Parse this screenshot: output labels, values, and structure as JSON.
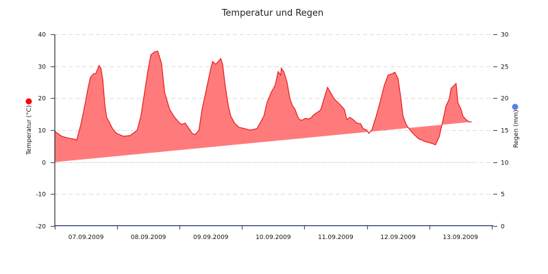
{
  "chart_data": {
    "type": "area",
    "title": "Temperatur und Regen",
    "xlabel": "",
    "ylabel": "Temperatur (°C)",
    "y2label": "Regen (mm)",
    "ylim": [
      -20,
      40
    ],
    "y2lim": [
      0,
      30
    ],
    "yticks": [
      40,
      30,
      20,
      10,
      0,
      -10,
      -20
    ],
    "y2ticks": [
      30,
      25,
      20,
      15,
      10,
      5,
      0
    ],
    "categories": [
      "07.09.2009",
      "08.09.2009",
      "09.09.2009",
      "10.09.2009",
      "11.09.2009",
      "12.09.2009",
      "13.09.2009"
    ],
    "grid": true,
    "legend": [
      {
        "name": "Temperatur (°C)",
        "color": "#ff0000",
        "axis": "left"
      },
      {
        "name": "Regen (mm)",
        "color": "#5b7fe8",
        "axis": "right"
      }
    ],
    "series": [
      {
        "name": "Temperatur",
        "color": "#e8191b",
        "fill": "#ff7b7b",
        "x_days": [
          0.0,
          0.11,
          0.22,
          0.33,
          0.35,
          0.42,
          0.49,
          0.53,
          0.57,
          0.62,
          0.66,
          0.71,
          0.74,
          0.77,
          0.8,
          0.83,
          0.88,
          0.93,
          0.99,
          1.1,
          1.21,
          1.32,
          1.38,
          1.43,
          1.49,
          1.54,
          1.6,
          1.65,
          1.71,
          1.76,
          1.84,
          1.92,
          2.0,
          2.04,
          2.09,
          2.15,
          2.2,
          2.25,
          2.31,
          2.36,
          2.43,
          2.5,
          2.53,
          2.58,
          2.62,
          2.66,
          2.69,
          2.73,
          2.78,
          2.82,
          2.88,
          2.95,
          3.04,
          3.13,
          3.24,
          3.35,
          3.4,
          3.47,
          3.53,
          3.58,
          3.62,
          3.63,
          3.67,
          3.72,
          3.77,
          3.81,
          3.85,
          3.89,
          3.92,
          3.96,
          4.02,
          4.05,
          4.1,
          4.15,
          4.26,
          4.37,
          4.48,
          4.54,
          4.59,
          4.64,
          4.68,
          4.73,
          4.77,
          4.84,
          4.9,
          4.94,
          5.0,
          5.03,
          5.08,
          5.15,
          5.21,
          5.28,
          5.34,
          5.4,
          5.45,
          5.5,
          5.54,
          5.58,
          5.63,
          5.66,
          5.72,
          5.77,
          5.83,
          5.94,
          6.05,
          6.1,
          6.16,
          6.21,
          6.27,
          6.32,
          6.35,
          6.4,
          6.43,
          6.46,
          6.51,
          6.54,
          6.59,
          6.64,
          6.68,
          6.73,
          6.77
        ],
        "values": [
          9.6,
          8.1,
          7.5,
          7.1,
          6.8,
          12.0,
          18.6,
          22.9,
          26.5,
          27.6,
          27.8,
          30.2,
          29.3,
          25.7,
          18.2,
          14.1,
          12.2,
          10.3,
          9.0,
          8.1,
          8.3,
          10.0,
          14.4,
          20.8,
          28.3,
          33.6,
          34.5,
          34.7,
          30.9,
          21.9,
          16.5,
          14.0,
          12.2,
          11.8,
          12.2,
          10.5,
          9.0,
          8.6,
          10.0,
          16.5,
          22.9,
          29.4,
          31.5,
          30.6,
          31.5,
          32.4,
          30.4,
          24.0,
          17.6,
          14.4,
          12.2,
          10.9,
          10.5,
          10.0,
          10.5,
          14.4,
          18.6,
          21.9,
          24.0,
          28.3,
          27.2,
          29.4,
          28.3,
          25.1,
          19.7,
          17.6,
          16.5,
          14.4,
          13.3,
          13.1,
          13.7,
          13.5,
          13.7,
          14.8,
          16.3,
          23.4,
          19.7,
          18.6,
          17.6,
          16.5,
          13.3,
          14.0,
          13.5,
          12.2,
          12.0,
          10.5,
          10.0,
          9.0,
          10.0,
          14.4,
          18.6,
          24.0,
          27.2,
          27.6,
          28.1,
          26.2,
          20.8,
          14.4,
          11.8,
          10.9,
          9.4,
          8.4,
          7.3,
          6.4,
          5.8,
          5.4,
          7.9,
          12.2,
          17.6,
          19.7,
          23.0,
          24.0,
          24.6,
          18.6,
          16.5,
          14.4,
          13.3,
          12.6,
          12.6
        ]
      }
    ]
  }
}
